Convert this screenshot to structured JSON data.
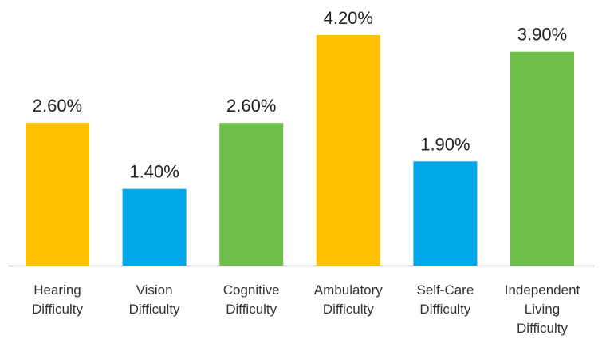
{
  "chart_data": {
    "type": "bar",
    "categories": [
      "Hearing Difficulty",
      "Vision Difficulty",
      "Cognitive Difficulty",
      "Ambulatory Difficulty",
      "Self-Care Difficulty",
      "Independent Living Difficulty"
    ],
    "values": [
      2.6,
      1.4,
      2.6,
      4.2,
      1.9,
      3.9
    ],
    "value_labels": [
      "2.60%",
      "1.40%",
      "2.60%",
      "4.20%",
      "1.90%",
      "3.90%"
    ],
    "colors": [
      "#ffc000",
      "#00a8e8",
      "#6fbe4a",
      "#ffc000",
      "#00a8e8",
      "#6fbe4a"
    ]
  }
}
